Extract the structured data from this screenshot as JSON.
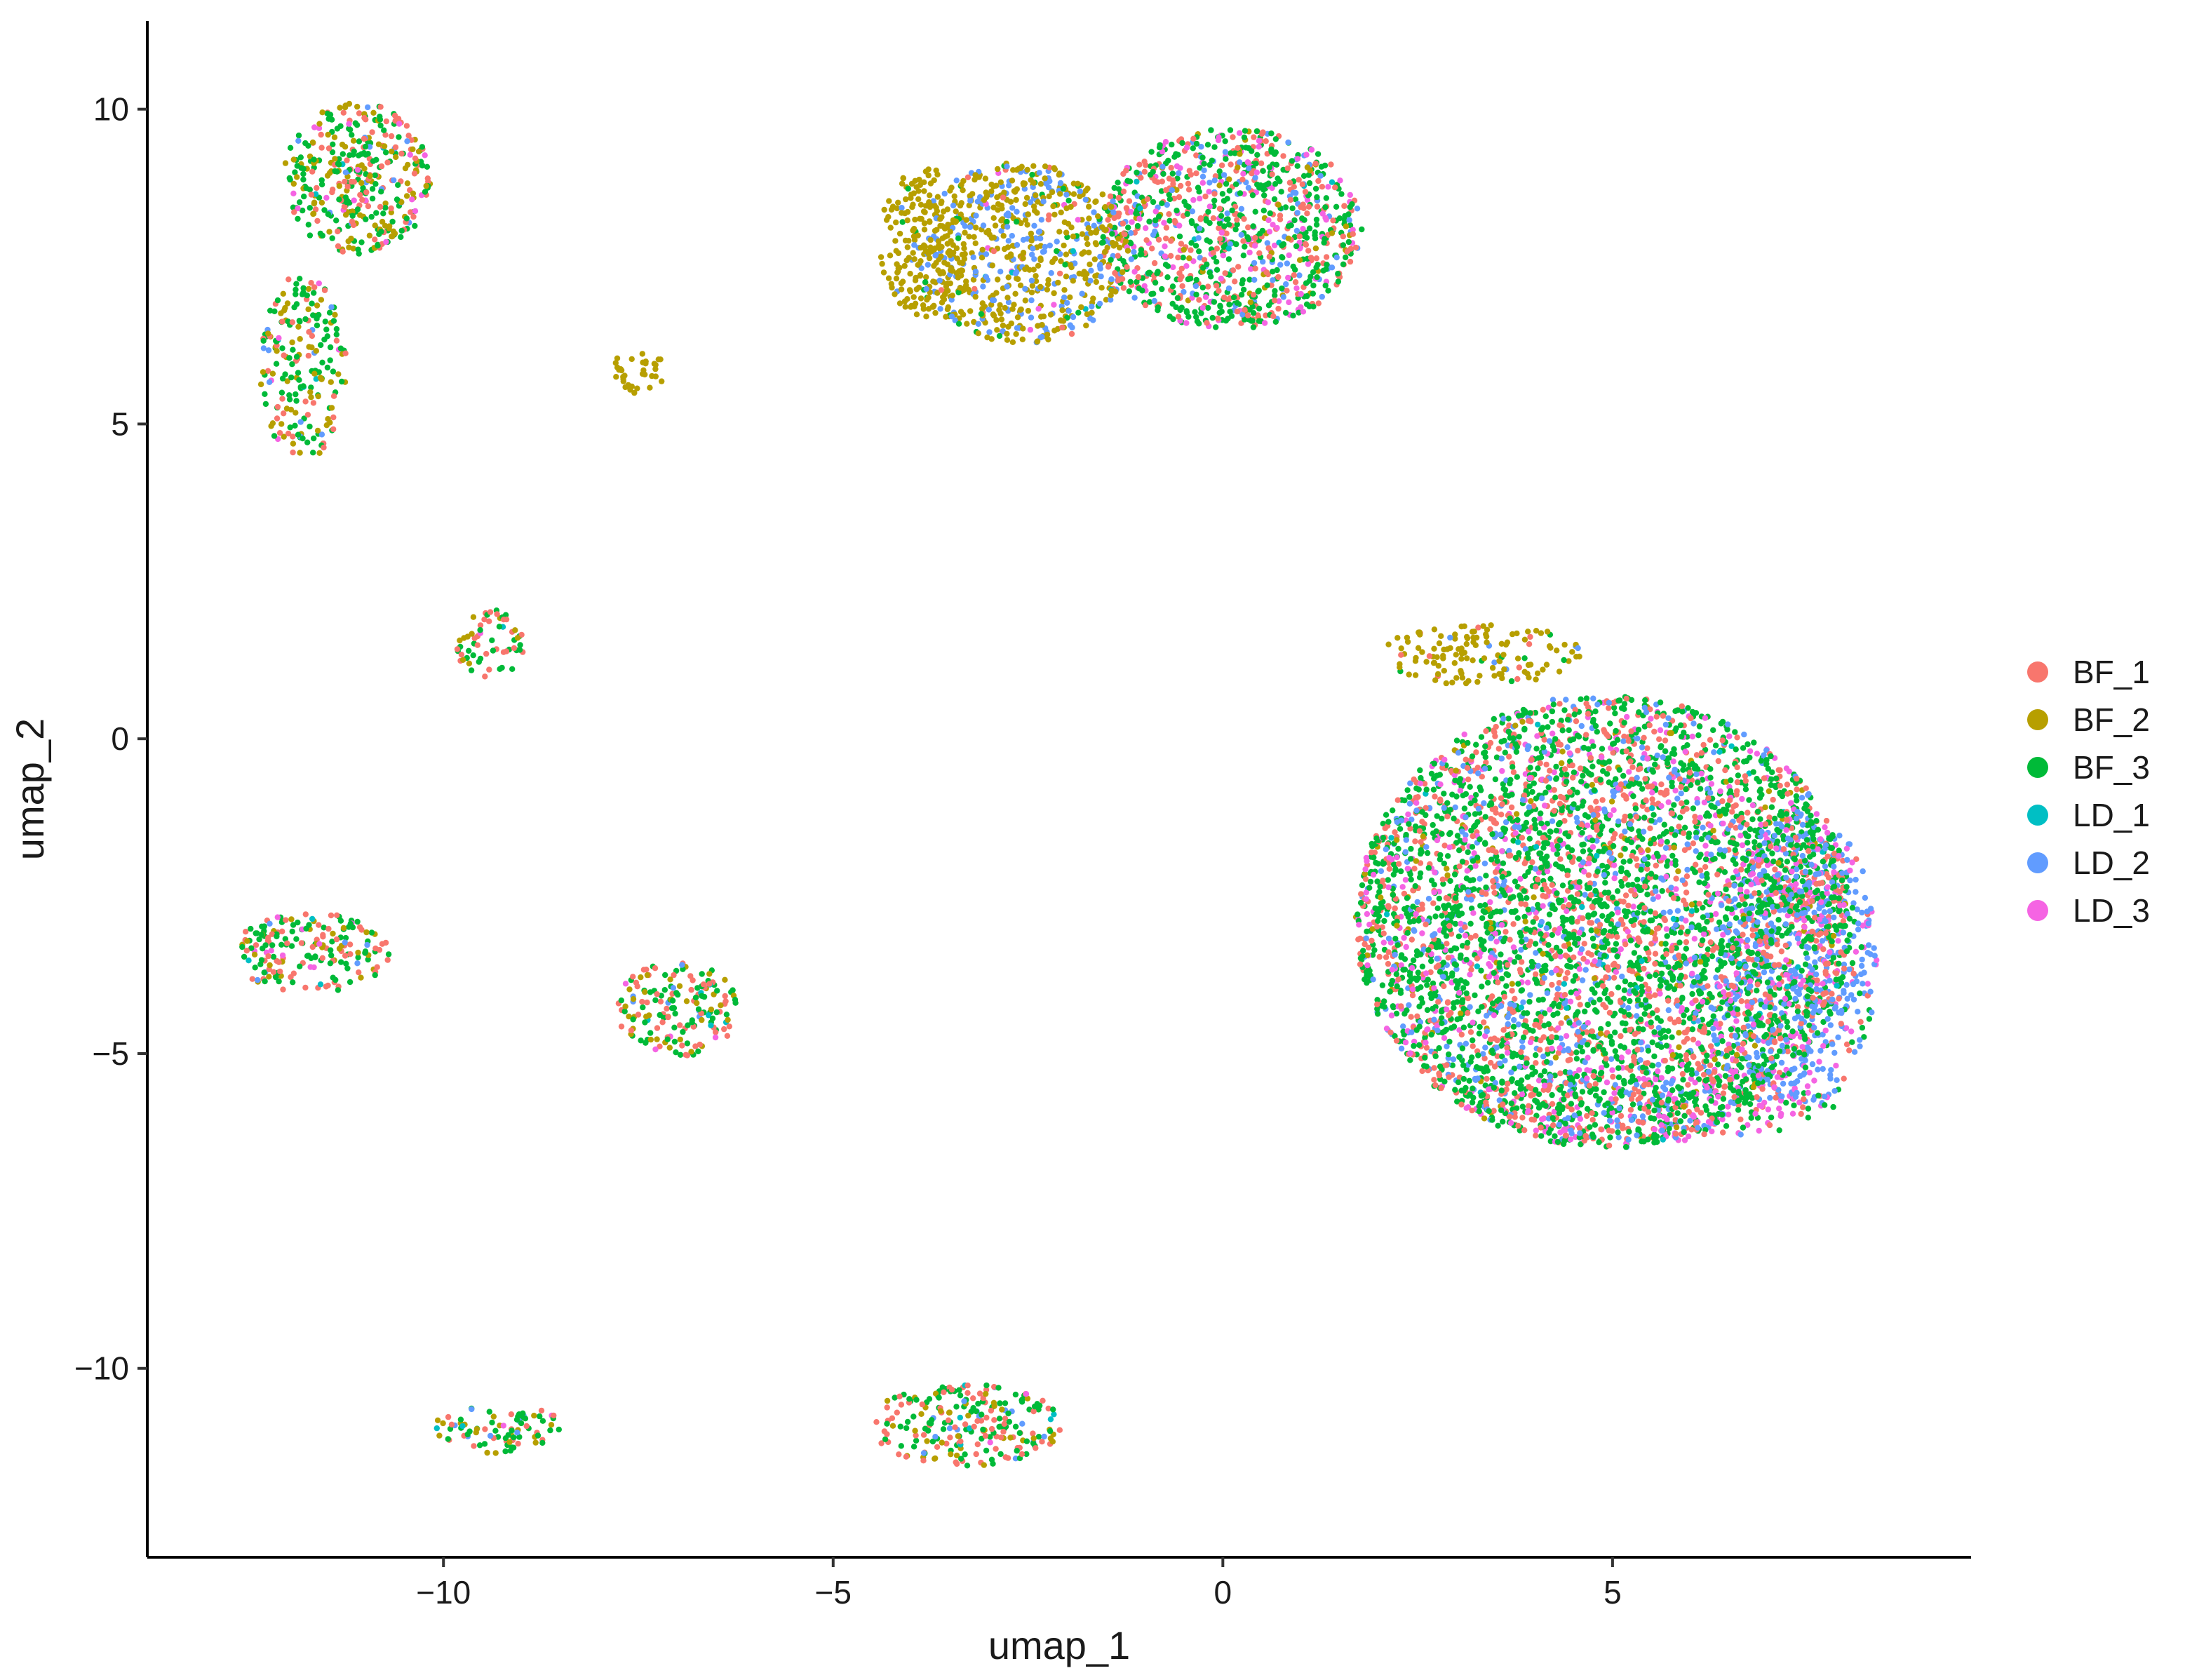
{
  "chart_data": {
    "type": "scatter",
    "title": "",
    "xlabel": "umap_1",
    "ylabel": "umap_2",
    "xlim": [
      -13.8,
      9.6
    ],
    "ylim": [
      -13.0,
      11.4
    ],
    "xticks": [
      -10,
      -5,
      0,
      5
    ],
    "yticks": [
      -10,
      -5,
      0,
      5,
      10
    ],
    "xtick_labels": [
      "−10",
      "−5",
      "0",
      "5"
    ],
    "ytick_labels": [
      "−10",
      "−5",
      "0",
      "5",
      "10"
    ],
    "grid": false,
    "legend": "right",
    "series": [
      {
        "name": "BF_1",
        "color": "#F8766D"
      },
      {
        "name": "BF_2",
        "color": "#B79F00"
      },
      {
        "name": "BF_3",
        "color": "#00BA38"
      },
      {
        "name": "LD_1",
        "color": "#00BFC4"
      },
      {
        "name": "LD_2",
        "color": "#619CFF"
      },
      {
        "name": "LD_3",
        "color": "#F564E3"
      }
    ],
    "clusters": [
      {
        "center": [
          4.9,
          -2.9
        ],
        "rx": 3.2,
        "ry": 3.6,
        "density": 1.0,
        "mix": [
          0.24,
          0.03,
          0.5,
          0.01,
          0.12,
          0.1
        ]
      },
      {
        "center": [
          7.4,
          -3.5
        ],
        "rx": 1.0,
        "ry": 2.4,
        "density": 0.6,
        "mix": [
          0.12,
          0.0,
          0.08,
          0.0,
          0.6,
          0.2
        ]
      },
      {
        "center": [
          5.5,
          -5.8
        ],
        "rx": 2.4,
        "ry": 0.6,
        "density": 0.45,
        "mix": [
          0.2,
          0.0,
          0.25,
          0.0,
          0.15,
          0.4
        ]
      },
      {
        "center": [
          3.3,
          1.35
        ],
        "rx": 1.3,
        "ry": 0.5,
        "density": 0.5,
        "mix": [
          0.05,
          0.85,
          0.06,
          0.0,
          0.04,
          0.0
        ]
      },
      {
        "center": [
          0.1,
          8.1
        ],
        "rx": 1.7,
        "ry": 1.6,
        "density": 0.9,
        "mix": [
          0.25,
          0.05,
          0.44,
          0.01,
          0.12,
          0.13
        ]
      },
      {
        "center": [
          -2.6,
          7.7
        ],
        "rx": 1.4,
        "ry": 1.45,
        "density": 0.8,
        "mix": [
          0.02,
          0.6,
          0.05,
          0.01,
          0.3,
          0.02
        ]
      },
      {
        "center": [
          -3.85,
          7.9
        ],
        "rx": 0.55,
        "ry": 1.2,
        "density": 0.7,
        "mix": [
          0.0,
          0.96,
          0.02,
          0.0,
          0.02,
          0.0
        ]
      },
      {
        "center": [
          -11.1,
          8.9
        ],
        "rx": 0.95,
        "ry": 1.2,
        "density": 0.8,
        "mix": [
          0.25,
          0.25,
          0.42,
          0.01,
          0.04,
          0.03
        ]
      },
      {
        "center": [
          -11.8,
          5.9
        ],
        "rx": 0.55,
        "ry": 1.5,
        "density": 0.6,
        "mix": [
          0.15,
          0.25,
          0.5,
          0.02,
          0.05,
          0.03
        ]
      },
      {
        "center": [
          -7.5,
          5.8
        ],
        "rx": 0.4,
        "ry": 0.35,
        "density": 0.6,
        "mix": [
          0.02,
          0.95,
          0.02,
          0.0,
          0.01,
          0.0
        ]
      },
      {
        "center": [
          -9.4,
          1.5
        ],
        "rx": 0.45,
        "ry": 0.55,
        "density": 0.6,
        "mix": [
          0.4,
          0.15,
          0.4,
          0.02,
          0.02,
          0.01
        ]
      },
      {
        "center": [
          -11.7,
          -3.4
        ],
        "rx": 1.0,
        "ry": 0.65,
        "density": 0.7,
        "mix": [
          0.35,
          0.15,
          0.4,
          0.02,
          0.03,
          0.05
        ]
      },
      {
        "center": [
          -7.0,
          -4.3
        ],
        "rx": 0.8,
        "ry": 0.75,
        "density": 0.7,
        "mix": [
          0.3,
          0.2,
          0.4,
          0.03,
          0.04,
          0.03
        ]
      },
      {
        "center": [
          -9.3,
          -10.95
        ],
        "rx": 0.85,
        "ry": 0.4,
        "density": 0.6,
        "mix": [
          0.2,
          0.2,
          0.5,
          0.02,
          0.05,
          0.03
        ]
      },
      {
        "center": [
          -3.3,
          -10.9
        ],
        "rx": 1.25,
        "ry": 0.65,
        "density": 0.7,
        "mix": [
          0.35,
          0.15,
          0.4,
          0.03,
          0.04,
          0.03
        ]
      }
    ]
  },
  "colors": {
    "axis": "#000000",
    "background": "#ffffff"
  }
}
